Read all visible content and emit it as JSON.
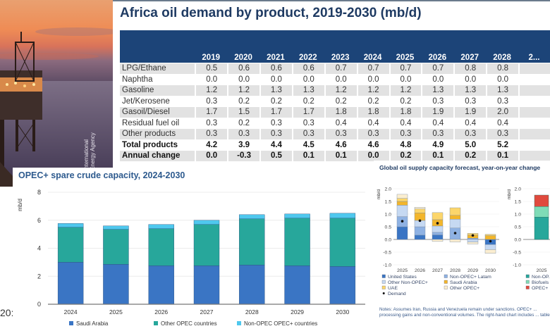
{
  "photo": {
    "watermark": "International Energy Agency",
    "description": "offshore oil rig at sunset"
  },
  "side_fragment": "20:",
  "colors": {
    "table_header": "#1c4478",
    "title_navy": "#1f3b63",
    "saudi": "#3a75c4",
    "other_opec": "#27a79b",
    "non_opec_opecplus": "#4fc8ee"
  },
  "chart_data": [
    {
      "type": "table",
      "title": "Africa oil demand by product, 2019-2030 (mb/d)",
      "columns": [
        "2019",
        "2020",
        "2021",
        "2022",
        "2023",
        "2024",
        "2025",
        "2026",
        "2027",
        "2028",
        "2..."
      ],
      "rows": [
        {
          "label": "LPG/Ethane",
          "values": [
            "0.5",
            "0.6",
            "0.6",
            "0.6",
            "0.7",
            "0.7",
            "0.7",
            "0.7",
            "0.8",
            "0.8",
            ""
          ],
          "bold": false
        },
        {
          "label": "Naphtha",
          "values": [
            "0.0",
            "0.0",
            "0.0",
            "0.0",
            "0.0",
            "0.0",
            "0.0",
            "0.0",
            "0.0",
            "0.0",
            ""
          ],
          "bold": false
        },
        {
          "label": "Gasoline",
          "values": [
            "1.2",
            "1.2",
            "1.3",
            "1.3",
            "1.2",
            "1.2",
            "1.2",
            "1.3",
            "1.3",
            "1.3",
            ""
          ],
          "bold": false
        },
        {
          "label": "Jet/Kerosene",
          "values": [
            "0.3",
            "0.2",
            "0.2",
            "0.2",
            "0.2",
            "0.2",
            "0.2",
            "0.3",
            "0.3",
            "0.3",
            ""
          ],
          "bold": false
        },
        {
          "label": "Gasoil/Diesel",
          "values": [
            "1.7",
            "1.5",
            "1.7",
            "1.7",
            "1.8",
            "1.8",
            "1.8",
            "1.9",
            "1.9",
            "2.0",
            ""
          ],
          "bold": false
        },
        {
          "label": "Residual fuel oil",
          "values": [
            "0.3",
            "0.2",
            "0.3",
            "0.3",
            "0.4",
            "0.4",
            "0.4",
            "0.4",
            "0.4",
            "0.4",
            ""
          ],
          "bold": false
        },
        {
          "label": "Other products",
          "values": [
            "0.3",
            "0.3",
            "0.3",
            "0.3",
            "0.3",
            "0.3",
            "0.3",
            "0.3",
            "0.3",
            "0.3",
            ""
          ],
          "bold": false
        },
        {
          "label": "Total products",
          "values": [
            "4.2",
            "3.9",
            "4.4",
            "4.5",
            "4.6",
            "4.6",
            "4.8",
            "4.9",
            "5.0",
            "5.2",
            ""
          ],
          "bold": true
        },
        {
          "label": "Annual change",
          "values": [
            "0.0",
            "-0.3",
            "0.5",
            "0.1",
            "0.1",
            "0.0",
            "0.2",
            "0.1",
            "0.2",
            "0.1",
            ""
          ],
          "bold": true
        }
      ]
    },
    {
      "type": "bar",
      "stacked": true,
      "title": "OPEC+ spare crude capacity, 2024-2030",
      "ylabel": "mb/d",
      "xlabel": "",
      "ylim": [
        0,
        8
      ],
      "yticks": [
        "0",
        "2",
        "4",
        "6",
        "8"
      ],
      "grid": true,
      "legend_position": "bottom",
      "categories": [
        "2024",
        "2025",
        "2026",
        "2027",
        "2028",
        "2029",
        "2030"
      ],
      "series": [
        {
          "name": "Saudi Arabia",
          "color": "#3a75c4",
          "values": [
            3.0,
            2.85,
            2.75,
            2.75,
            2.8,
            2.75,
            2.7
          ]
        },
        {
          "name": "Other OPEC countries",
          "color": "#27a79b",
          "values": [
            2.5,
            2.5,
            2.65,
            2.95,
            3.3,
            3.4,
            3.45
          ]
        },
        {
          "name": "Non-OPEC OPEC+ countries",
          "color": "#4fc8ee",
          "values": [
            0.27,
            0.25,
            0.3,
            0.3,
            0.3,
            0.3,
            0.35
          ]
        }
      ]
    },
    {
      "type": "bar",
      "stacked": true,
      "title": "Global oil supply capacity forecast, year-on-year change",
      "ylabel": "mb/d",
      "ylim": [
        -1.0,
        2.0
      ],
      "yticks": [
        "-1.0",
        "-0.5",
        "0.0",
        "0.5",
        "1.0",
        "1.5",
        "2.0"
      ],
      "grid": true,
      "legend_position": "bottom",
      "categories": [
        "2025",
        "2026",
        "2027",
        "2028",
        "2029",
        "2030"
      ],
      "series": [
        {
          "name": "United States",
          "color": "#3a75c4",
          "values": [
            0.5,
            0.17,
            0.18,
            0.0,
            0.0,
            -0.2
          ]
        },
        {
          "name": "Non-OPEC+ Latam",
          "color": "#8fb2e3",
          "values": [
            0.4,
            0.33,
            0.1,
            0.45,
            0.05,
            0.0
          ]
        },
        {
          "name": "Other Non-OPEC+",
          "color": "#c6d9f2",
          "values": [
            0.45,
            0.25,
            0.25,
            0.35,
            -0.1,
            -0.2
          ]
        },
        {
          "name": "Saudi Arabia",
          "color": "#f3b62b",
          "values": [
            0.15,
            0.3,
            0.25,
            0.15,
            0.12,
            0.15
          ]
        },
        {
          "name": "UAE",
          "color": "#fcd66b",
          "values": [
            0.12,
            0.15,
            0.28,
            0.3,
            0.07,
            0.05
          ]
        },
        {
          "name": "Other OPEC+",
          "color": "#fbeed0",
          "values": [
            0.16,
            0.07,
            -0.08,
            -0.1,
            -0.08,
            -0.15
          ]
        }
      ],
      "demand": [
        0.72,
        0.74,
        0.64,
        0.25,
        0.16,
        -0.07
      ],
      "legend": [
        "United States",
        "Non-OPEC+ Latam",
        "Other Non-OPEC+",
        "Saudi Arabia",
        "UAE",
        "Other OPEC+",
        "Demand"
      ],
      "notes": "Notes: Assumes Iran, Russia and Venezuela remain under sanctions. OPEC+ ... processing gains and non-conventional volumes. The right-hand chart includes ... tables"
    },
    {
      "type": "bar",
      "stacked": true,
      "title": "",
      "ylabel": "mb/d",
      "ylim": [
        -1.0,
        2.0
      ],
      "yticks": [
        "-1.0",
        "-0.5",
        "0.0",
        "0.5",
        "1.0",
        "1.5",
        "2.0"
      ],
      "categories": [
        "2025"
      ],
      "series": [
        {
          "name": "Non-OPEC+",
          "color": "#27a79b",
          "values": [
            0.88
          ]
        },
        {
          "name": "Biofuels",
          "color": "#7fdcb7",
          "values": [
            0.42
          ]
        },
        {
          "name": "OPEC+",
          "color": "#e04a3e",
          "values": [
            0.45
          ]
        }
      ],
      "legend": [
        "Non-OP...",
        "Biofuels",
        "OPEC+"
      ]
    }
  ]
}
